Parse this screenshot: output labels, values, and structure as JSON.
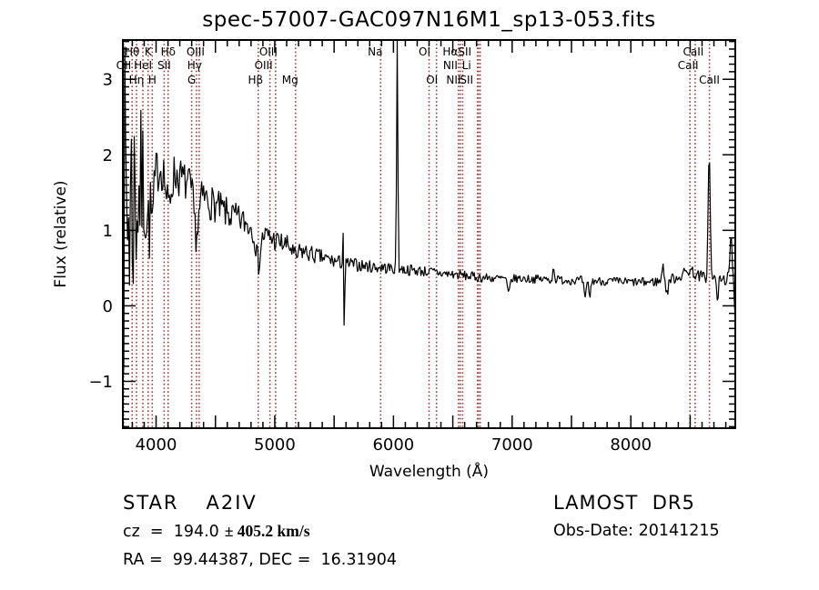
{
  "title": "spec-57007-GAC097N16M1_sp13-053.fits",
  "annotations": {
    "class": "STAR",
    "subclass": "A2IV",
    "cz_prefix": "cz  =  194.0",
    "cz_error": "± 405.2 km/s",
    "ra_dec": "RA =  99.44387, DEC =  16.31904",
    "survey": "LAMOST  DR5",
    "obs_date": "Obs-Date: 20141215"
  },
  "chart_data": {
    "type": "line",
    "title": "spec-57007-GAC097N16M1_sp13-053.fits",
    "xlabel": "Wavelength (Å)",
    "ylabel": "Flux (relative)",
    "xlim": [
      3720,
      8880
    ],
    "ylim": [
      -1.62,
      3.52
    ],
    "grid": false,
    "x_labeled_ticks": [
      4000,
      5000,
      6000,
      7000,
      8000
    ],
    "x_major_step": 500,
    "x_minor_step": 100,
    "y_labeled_ticks": [
      -1,
      0,
      1,
      2,
      3
    ],
    "y_major_step": 1,
    "y_minor_step": 0.1,
    "line_color": "#000000",
    "marker_color": "#97413b",
    "spectral_lines": [
      {
        "label": "Hθ",
        "wl": 3798,
        "row": 1,
        "dx": 0
      },
      {
        "label": "K",
        "wl": 3933,
        "row": 1,
        "dx": 0
      },
      {
        "label": "Hδ",
        "wl": 4102,
        "row": 1,
        "dx": 0
      },
      {
        "label": "OIII",
        "wl": 4363,
        "row": 1,
        "dx": -4
      },
      {
        "label": "OIII",
        "wl": 5007,
        "row": 1,
        "dx": -8
      },
      {
        "label": "Na",
        "wl": 5892,
        "row": 1,
        "dx": -6
      },
      {
        "label": "OI",
        "wl": 6300,
        "row": 1,
        "dx": -5
      },
      {
        "label": "Hα",
        "wl": 6563,
        "row": 1,
        "dx": -11
      },
      {
        "label": "SII",
        "wl": 6716,
        "row": 1,
        "dx": -15
      },
      {
        "label": "CaII",
        "wl": 8542,
        "row": 1,
        "dx": -2
      },
      {
        "label": "OII",
        "wl": 3727,
        "row": 2,
        "dx": 0
      },
      {
        "label": "HeI",
        "wl": 3889,
        "row": 2,
        "dx": 0
      },
      {
        "label": "SII",
        "wl": 4068,
        "row": 2,
        "dx": 0
      },
      {
        "label": "Hγ",
        "wl": 4340,
        "row": 2,
        "dx": -2
      },
      {
        "label": "OIII",
        "wl": 4959,
        "row": 2,
        "dx": -7
      },
      {
        "label": "NII",
        "wl": 6548,
        "row": 2,
        "dx": -9
      },
      {
        "label": "Li",
        "wl": 6708,
        "row": 2,
        "dx": -12
      },
      {
        "label": "CaII",
        "wl": 8498,
        "row": 2,
        "dx": -2
      },
      {
        "label": "Hη",
        "wl": 3835,
        "row": 3,
        "dx": 0
      },
      {
        "label": "H",
        "wl": 3968,
        "row": 3,
        "dx": 0
      },
      {
        "label": "G",
        "wl": 4300,
        "row": 3,
        "dx": 0
      },
      {
        "label": "Hβ",
        "wl": 4861,
        "row": 3,
        "dx": -3
      },
      {
        "label": "Mg",
        "wl": 5175,
        "row": 3,
        "dx": -6
      },
      {
        "label": "OI",
        "wl": 6363,
        "row": 3,
        "dx": -5
      },
      {
        "label": "NII",
        "wl": 6583,
        "row": 3,
        "dx": -10
      },
      {
        "label": "SII",
        "wl": 6731,
        "row": 3,
        "dx": -15
      },
      {
        "label": "CaII",
        "wl": 8662,
        "row": 3,
        "dx": 0
      }
    ],
    "spectrum": {
      "step": 8,
      "seed": 7,
      "envelope": [
        [
          3720,
          1.2
        ],
        [
          3780,
          1.35
        ],
        [
          3850,
          1.5
        ],
        [
          3920,
          1.65
        ],
        [
          3990,
          1.8
        ],
        [
          4060,
          1.85
        ],
        [
          4130,
          1.78
        ],
        [
          4200,
          1.7
        ],
        [
          4300,
          1.55
        ],
        [
          4450,
          1.38
        ],
        [
          4600,
          1.22
        ],
        [
          4750,
          1.1
        ],
        [
          4900,
          0.95
        ],
        [
          5050,
          0.83
        ],
        [
          5200,
          0.74
        ],
        [
          5350,
          0.66
        ],
        [
          5500,
          0.59
        ],
        [
          5650,
          0.55
        ],
        [
          5800,
          0.52
        ],
        [
          5950,
          0.5
        ],
        [
          6100,
          0.48
        ],
        [
          6250,
          0.46
        ],
        [
          6400,
          0.43
        ],
        [
          6550,
          0.41
        ],
        [
          6700,
          0.38
        ],
        [
          6900,
          0.36
        ],
        [
          7100,
          0.36
        ],
        [
          7300,
          0.35
        ],
        [
          7500,
          0.34
        ],
        [
          7700,
          0.33
        ],
        [
          7900,
          0.32
        ],
        [
          8100,
          0.31
        ],
        [
          8300,
          0.33
        ],
        [
          8420,
          0.4
        ],
        [
          8500,
          0.48
        ],
        [
          8560,
          0.4
        ],
        [
          8620,
          0.38
        ],
        [
          8700,
          0.36
        ],
        [
          8780,
          0.34
        ],
        [
          8860,
          0.42
        ],
        [
          8880,
          0.3
        ]
      ],
      "noise": [
        [
          3720,
          2.3
        ],
        [
          3760,
          2.3
        ],
        [
          3800,
          1.7
        ],
        [
          3850,
          1.25
        ],
        [
          3900,
          0.9
        ],
        [
          3950,
          0.55
        ],
        [
          4000,
          0.33
        ],
        [
          4200,
          0.28
        ],
        [
          4400,
          0.25
        ],
        [
          4700,
          0.2
        ],
        [
          5000,
          0.16
        ],
        [
          5300,
          0.12
        ],
        [
          5600,
          0.09
        ],
        [
          6000,
          0.08
        ],
        [
          6500,
          0.07
        ],
        [
          7000,
          0.06
        ],
        [
          7500,
          0.06
        ],
        [
          8000,
          0.06
        ],
        [
          8400,
          0.08
        ],
        [
          8880,
          0.09
        ]
      ],
      "features": [
        [
          3934,
          -0.6,
          14
        ],
        [
          3970,
          -0.6,
          14
        ],
        [
          4102,
          -0.5,
          20
        ],
        [
          4340,
          -0.55,
          20
        ],
        [
          4861,
          -0.42,
          18
        ],
        [
          5175,
          -0.12,
          20
        ],
        [
          5578,
          0.5,
          4
        ],
        [
          5586,
          -1.1,
          4
        ],
        [
          6032,
          3.4,
          5
        ],
        [
          6970,
          -0.22,
          10
        ],
        [
          7350,
          0.18,
          6
        ],
        [
          7615,
          -0.26,
          9
        ],
        [
          7655,
          -0.2,
          8
        ],
        [
          8270,
          0.3,
          6
        ],
        [
          8305,
          -0.2,
          7
        ],
        [
          8660,
          1.75,
          8
        ],
        [
          8730,
          -0.25,
          8
        ],
        [
          8845,
          0.55,
          7
        ],
        [
          8878,
          -0.5,
          5
        ]
      ]
    }
  }
}
